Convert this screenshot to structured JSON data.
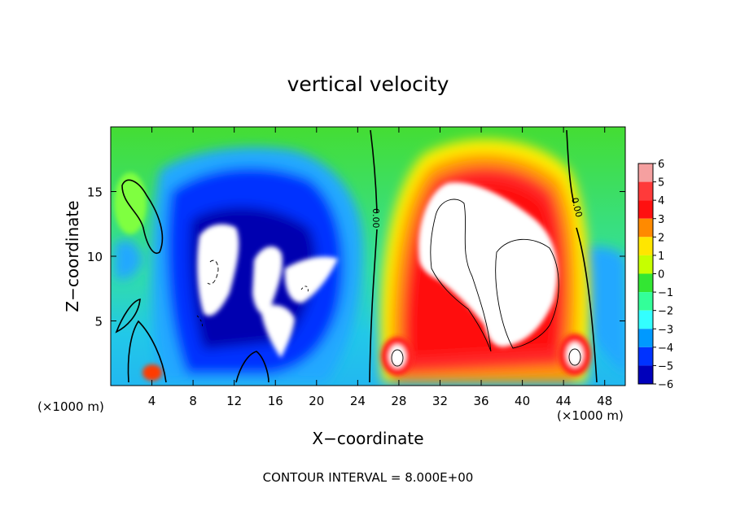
{
  "chart_data": {
    "type": "heatmap",
    "title": "vertical velocity",
    "xlabel": "X−coordinate",
    "ylabel": "Z−coordinate",
    "x_unit_left": "(×1000 m)",
    "x_unit_right": "(×1000 m)",
    "footer": "CONTOUR INTERVAL = 8.000E+00",
    "xlim": [
      0,
      50
    ],
    "ylim": [
      0,
      20
    ],
    "xticks": [
      4,
      8,
      12,
      16,
      20,
      24,
      28,
      32,
      36,
      40,
      44,
      48
    ],
    "yticks": [
      5,
      10,
      15
    ],
    "colorbar": {
      "min": -6,
      "max": 6,
      "labels": [
        "6",
        "5",
        "4",
        "3",
        "2",
        "1",
        "0",
        "−1",
        "−2",
        "−3",
        "−4",
        "−5",
        "−6"
      ],
      "colors": [
        "#f5a0a0",
        "#ff3a3a",
        "#ff1010",
        "#ff8a00",
        "#ffe600",
        "#c6ff00",
        "#33e633",
        "#33ff99",
        "#33ffff",
        "#0099ff",
        "#0033ff",
        "#0000bb",
        "#7a00c8"
      ]
    },
    "contour_labels": [
      "0.00",
      "0.00"
    ],
    "contour_values": [
      0
    ]
  }
}
